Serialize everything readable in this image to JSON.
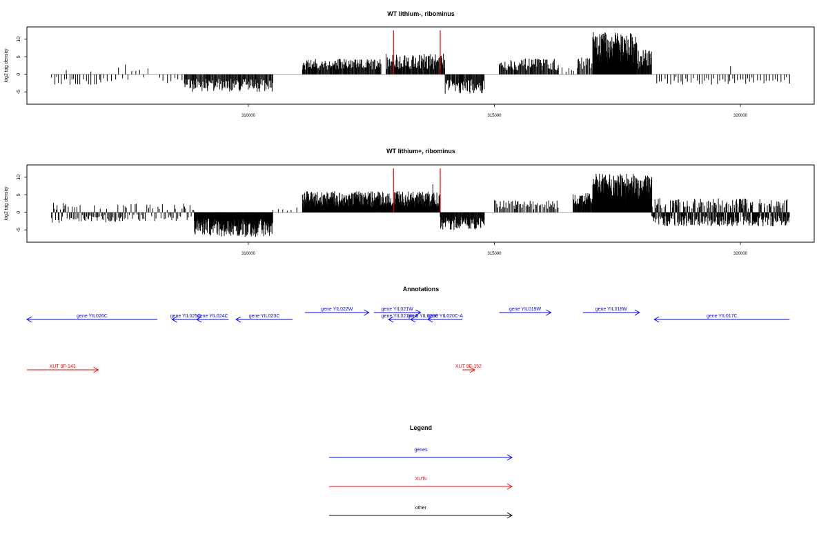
{
  "colors": {
    "gene": "#0000ff",
    "xut": "#ff0000",
    "other": "#000000",
    "marker": "#ff0000",
    "bars": "#000000"
  },
  "chart_data": [
    {
      "type": "bar",
      "title": "WT lithium-, ribominus",
      "ylabel": "log2 tag density",
      "xlim": [
        305500,
        321500
      ],
      "ylim": [
        -8.5,
        13.5
      ],
      "yticks": [
        -5,
        0,
        5,
        10
      ],
      "xticks": [
        310000,
        315000,
        320000
      ],
      "markers_x": [
        312950,
        313900
      ],
      "segments": [
        {
          "from": 306000,
          "to": 307000,
          "side": "neg",
          "hi": 3,
          "step": 55
        },
        {
          "from": 307000,
          "to": 308000,
          "side": "mixed",
          "hi": 3,
          "step": 80
        },
        {
          "from": 308200,
          "to": 308700,
          "side": "neg",
          "hi": 2.5,
          "step": 70
        },
        {
          "from": 308700,
          "to": 310500,
          "side": "neg",
          "hi": 5,
          "step": 14
        },
        {
          "from": 311100,
          "to": 312700,
          "side": "pos",
          "hi": 4.5,
          "step": 12
        },
        {
          "from": 312800,
          "to": 314000,
          "side": "pos",
          "hi": 6,
          "step": 12
        },
        {
          "from": 314000,
          "to": 314800,
          "side": "neg",
          "hi": 5.5,
          "step": 14
        },
        {
          "from": 315100,
          "to": 316300,
          "side": "pos",
          "hi": 4.5,
          "step": 14
        },
        {
          "from": 316300,
          "to": 316700,
          "side": "pos",
          "hi": 2,
          "step": 60
        },
        {
          "from": 316700,
          "to": 317000,
          "side": "pos",
          "hi": 5,
          "step": 20
        },
        {
          "from": 317000,
          "to": 317900,
          "side": "pos",
          "hi": 12,
          "step": 6
        },
        {
          "from": 317900,
          "to": 318200,
          "side": "pos",
          "hi": 7,
          "step": 10
        },
        {
          "from": 318300,
          "to": 321000,
          "side": "neg",
          "hi": 3,
          "step": 55
        }
      ],
      "spikes": [
        {
          "x": 307500,
          "y": 2.8
        },
        {
          "x": 319800,
          "y": 2.3
        },
        {
          "x": 306300,
          "y": 1.2
        },
        {
          "x": 306800,
          "y": 0.8
        }
      ]
    },
    {
      "type": "bar",
      "title": "WT lithium+, ribominus",
      "ylabel": "log2 tag density",
      "xlim": [
        305500,
        321500
      ],
      "ylim": [
        -8.5,
        13.5
      ],
      "yticks": [
        -5,
        0,
        5,
        10
      ],
      "xticks": [
        310000,
        315000,
        320000
      ],
      "markers_x": [
        312950,
        313900
      ],
      "segments": [
        {
          "from": 306000,
          "to": 307500,
          "side": "mixed",
          "hi": 3,
          "step": 20
        },
        {
          "from": 307500,
          "to": 308500,
          "side": "mixed",
          "hi": 2.5,
          "step": 30
        },
        {
          "from": 308500,
          "to": 308900,
          "side": "mixed",
          "hi": 2.5,
          "step": 25
        },
        {
          "from": 308900,
          "to": 310500,
          "side": "neg",
          "hi": 7,
          "step": 8
        },
        {
          "from": 310500,
          "to": 311000,
          "side": "pos",
          "hi": 1.5,
          "step": 90
        },
        {
          "from": 311100,
          "to": 313900,
          "side": "pos",
          "hi": 6,
          "step": 7
        },
        {
          "from": 313900,
          "to": 314800,
          "side": "neg",
          "hi": 5,
          "step": 10
        },
        {
          "from": 315000,
          "to": 316300,
          "side": "pos",
          "hi": 3.5,
          "step": 25
        },
        {
          "from": 316600,
          "to": 317000,
          "side": "pos",
          "hi": 5.5,
          "step": 10
        },
        {
          "from": 317000,
          "to": 318200,
          "side": "pos",
          "hi": 11,
          "step": 5
        },
        {
          "from": 318200,
          "to": 321000,
          "side": "mixed",
          "hi": 4,
          "step": 8
        }
      ],
      "spikes": [
        {
          "x": 313750,
          "y": 8
        }
      ]
    }
  ],
  "annotations": {
    "title": "Annotations",
    "genes": [
      {
        "label": "gene YIL026C",
        "from": 305500,
        "to": 308150,
        "dir": "left",
        "row": 2
      },
      {
        "label": "gene YIL025C",
        "from": 308450,
        "to": 309000,
        "dir": "left",
        "row": 2
      },
      {
        "label": "gene YIL024C",
        "from": 308950,
        "to": 309600,
        "dir": "left",
        "row": 2
      },
      {
        "label": "gene YIL023C",
        "from": 309750,
        "to": 310900,
        "dir": "left",
        "row": 2
      },
      {
        "label": "gene YIL022W",
        "from": 311150,
        "to": 312450,
        "dir": "right",
        "row": 1
      },
      {
        "label": "gene YIL021W",
        "from": 312550,
        "to": 313500,
        "dir": "right",
        "row": 1
      },
      {
        "label": "gene YIL021W-A",
        "from": 312850,
        "to": 313300,
        "dir": "left",
        "row": 2
      },
      {
        "label": "gene YIL020C",
        "from": 313300,
        "to": 313800,
        "dir": "left",
        "row": 2
      },
      {
        "label": "gene YIL020C-A",
        "from": 313650,
        "to": 314350,
        "dir": "left",
        "row": 2
      },
      {
        "label": "gene YIL019W",
        "from": 315100,
        "to": 316150,
        "dir": "right",
        "row": 1
      },
      {
        "label": "gene YIL018W",
        "from": 316800,
        "to": 317950,
        "dir": "right",
        "row": 1
      },
      {
        "label": "gene YIL017C",
        "from": 318250,
        "to": 321000,
        "dir": "left",
        "row": 2
      }
    ],
    "xuts": [
      {
        "label": "XUT 9F-143",
        "from": 305500,
        "to": 306950,
        "dir": "right"
      },
      {
        "label": "XUT 9F-152",
        "from": 314350,
        "to": 314600,
        "dir": "right"
      }
    ]
  },
  "legend": {
    "title": "Legend",
    "items": [
      {
        "label": "genes",
        "color": "#0000ff"
      },
      {
        "label": "XUTs",
        "color": "#ff0000"
      },
      {
        "label": "other",
        "color": "#000000"
      }
    ]
  }
}
